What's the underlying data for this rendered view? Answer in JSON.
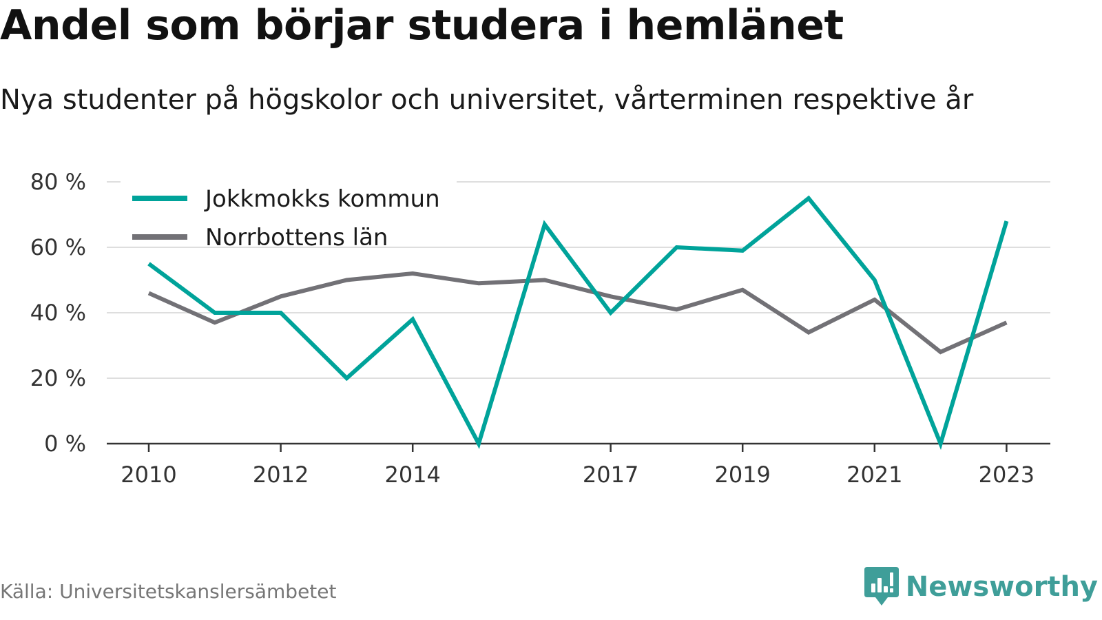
{
  "chart_data": {
    "type": "line",
    "title": "Andel som börjar studera i hemlänet",
    "subtitle": "Nya studenter på högskolor och universitet, vårterminen respektive år",
    "x": [
      2010,
      2011,
      2012,
      2013,
      2014,
      2015,
      2016,
      2017,
      2018,
      2019,
      2020,
      2021,
      2022,
      2023
    ],
    "x_tick_labels": [
      "2010",
      "2012",
      "2014",
      "2017",
      "2019",
      "2021",
      "2023"
    ],
    "y_tick_labels": [
      "0 %",
      "20 %",
      "40 %",
      "60 %",
      "80 %"
    ],
    "y_ticks": [
      0,
      20,
      40,
      60,
      80
    ],
    "ylim": [
      0,
      80
    ],
    "grid": true,
    "legend_position": "top-left",
    "series": [
      {
        "name": "Jokkmokks kommun",
        "color": "#00a39a",
        "values": [
          55,
          40,
          40,
          20,
          38,
          0,
          67,
          40,
          60,
          59,
          75,
          50,
          0,
          68
        ]
      },
      {
        "name": "Norrbottens län",
        "color": "#727176",
        "values": [
          46,
          37,
          45,
          50,
          52,
          49,
          50,
          45,
          41,
          47,
          34,
          44,
          28,
          37
        ]
      }
    ]
  },
  "footer": {
    "source": "Källa: Universitetskanslersämbetet",
    "brand": "Newsworthy",
    "brand_color": "#3f9e99"
  }
}
